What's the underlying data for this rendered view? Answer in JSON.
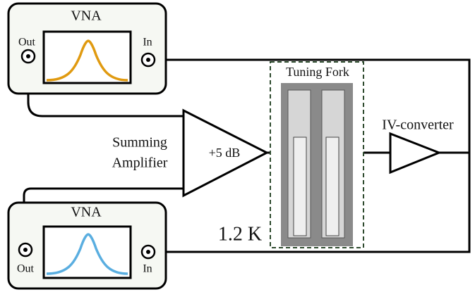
{
  "top_vna": {
    "title": "VNA",
    "out": "Out",
    "in": "In"
  },
  "bottom_vna": {
    "title": "VNA",
    "out": "Out",
    "in": "In"
  },
  "amplifier": {
    "label_line1": "Summing",
    "label_line2": "Amplifier",
    "gain": "+5 dB"
  },
  "tuning_fork": {
    "label": "Tuning Fork",
    "temperature": "1.2 K"
  },
  "converter": {
    "label": "IV-converter"
  }
}
